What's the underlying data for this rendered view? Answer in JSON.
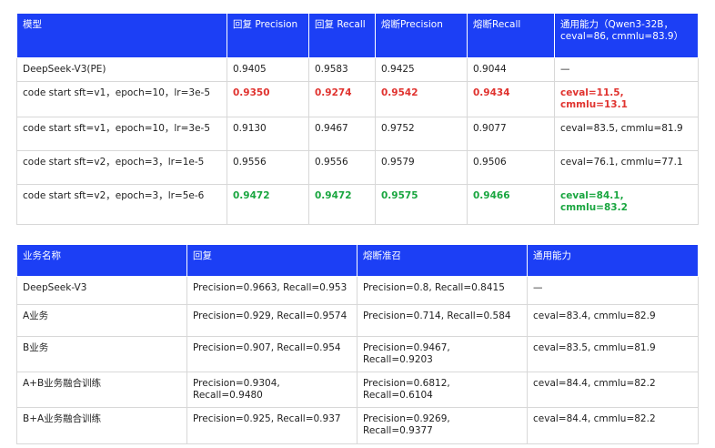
{
  "tables": [
    {
      "header": [
        "模型",
        "回复 Precision",
        "回复 Recall",
        "熔断Precision",
        "熔断Recall",
        "通用能力（Qwen3-32B，ceval=86, cmmlu=83.9）"
      ],
      "rows": [
        [
          "DeepSeek-V3(PE)",
          "0.9405",
          "0.9583",
          "0.9425",
          "0.9044",
          "—"
        ],
        [
          "code start sft=v1，epoch=10，lr=3e-5",
          "0.9350",
          "0.9274",
          "0.9542",
          "0.9434",
          "ceval=11.5, cmmlu=13.1"
        ],
        [
          "code start sft=v1，epoch=10，lr=3e-5",
          "0.9130",
          "0.9467",
          "0.9752",
          "0.9077",
          "ceval=83.5, cmmlu=81.9"
        ],
        [
          "code start sft=v2，epoch=3，lr=1e-5",
          "0.9556",
          "0.9556",
          "0.9579",
          "0.9506",
          "ceval=76.1, cmmlu=77.1"
        ],
        [
          "code start sft=v2，epoch=3，lr=5e-6",
          "0.9472",
          "0.9472",
          "0.9575",
          "0.9466",
          "ceval=84.1, cmmlu=83.2"
        ]
      ]
    },
    {
      "header": [
        "业务名称",
        "回复",
        "熔断准召",
        "通用能力"
      ],
      "rows": [
        [
          "DeepSeek-V3",
          "Precision=0.9663, Recall=0.953",
          "Precision=0.8, Recall=0.8415",
          "—"
        ],
        [
          "A业务",
          "Precision=0.929, Recall=0.9574",
          "Precision=0.714, Recall=0.584",
          "ceval=83.4, cmmlu=82.9"
        ],
        [
          "B业务",
          "Precision=0.907, Recall=0.954",
          "Precision=0.9467, Recall=0.9203",
          "ceval=83.5, cmmlu=81.9"
        ],
        [
          "A+B业务融合训练",
          "Precision=0.9304, Recall=0.9480",
          "Precision=0.6812, Recall=0.6104",
          "ceval=84.4, cmmlu=82.2"
        ],
        [
          "B+A业务融合训练",
          "Precision=0.925, Recall=0.937",
          "Precision=0.9269, Recall=0.9377",
          "ceval=84.4, cmmlu=82.2"
        ]
      ]
    }
  ]
}
